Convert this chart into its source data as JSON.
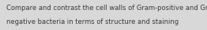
{
  "text_line1": "Compare and contrast the cell walls of Gram-positive and Gram-",
  "text_line2": "negative bacteria in terms of structure and staining",
  "background_color": "#d8d8d8",
  "text_color": "#3a3a3a",
  "font_size": 6.0,
  "fig_width": 2.62,
  "fig_height": 0.39,
  "dpi": 100
}
